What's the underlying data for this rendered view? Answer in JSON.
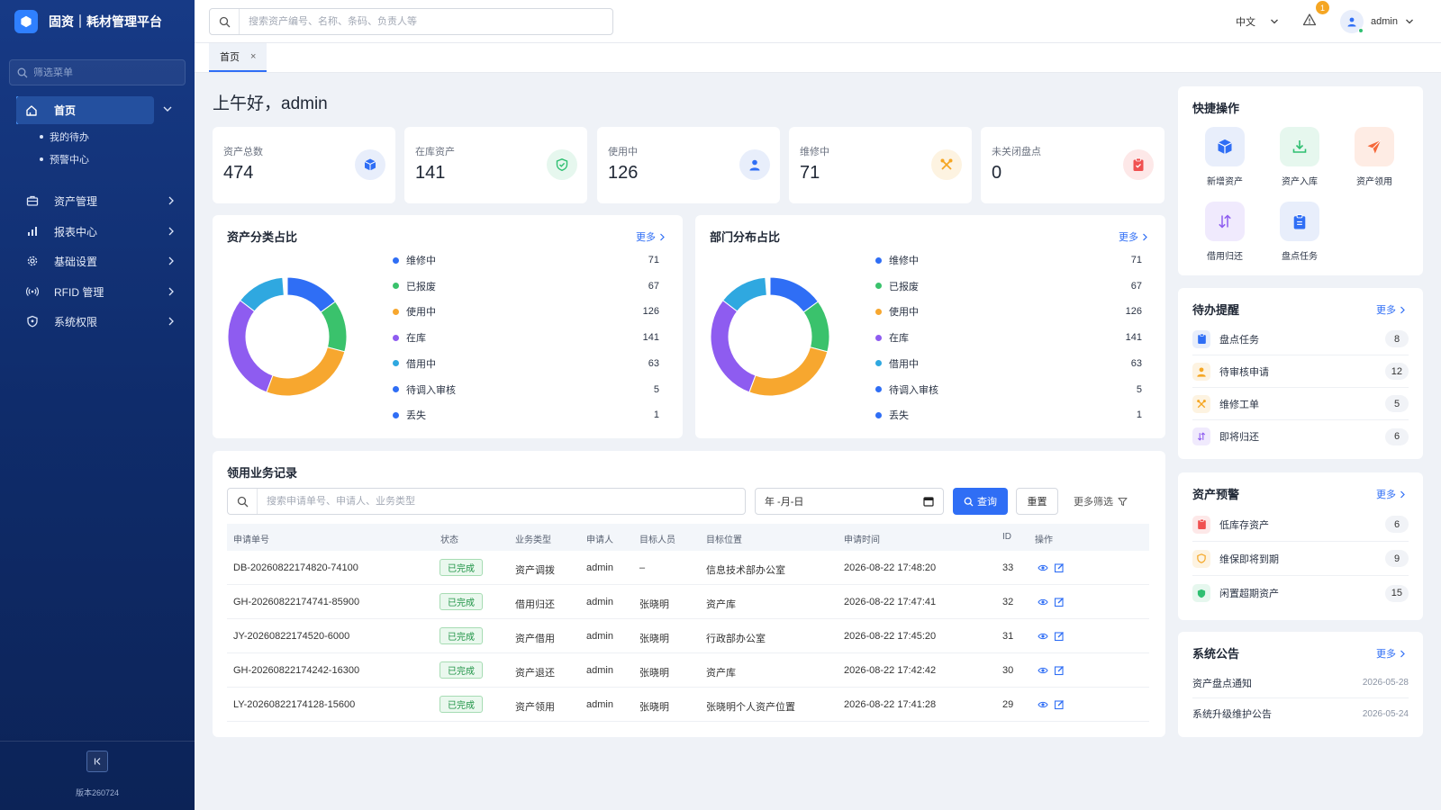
{
  "app": {
    "title": "固资｜耗材管理平台",
    "version": "版本260724"
  },
  "sidebar": {
    "filter_placeholder": "筛选菜单",
    "home": "首页",
    "home_children": [
      "我的待办",
      "预警中心"
    ],
    "items": [
      "资产管理",
      "报表中心",
      "基础设置",
      "RFID 管理",
      "系统权限"
    ]
  },
  "header": {
    "search_placeholder": "搜索资产编号、名称、条码、负责人等",
    "language": "中文",
    "alert_count": "1",
    "username": "admin"
  },
  "tabs": [
    {
      "label": "首页",
      "close": "×"
    }
  ],
  "greeting": "上午好，admin",
  "stats": [
    {
      "label": "资产总数",
      "value": "474",
      "color": "#2f6ef5",
      "icon": "cube-icon"
    },
    {
      "label": "在库资产",
      "value": "141",
      "color": "#2fbf71",
      "icon": "shield-check-icon"
    },
    {
      "label": "使用中",
      "value": "126",
      "color": "#2f6ef5",
      "icon": "user-icon"
    },
    {
      "label": "维修中",
      "value": "71",
      "color": "#f5a623",
      "icon": "tools-icon"
    },
    {
      "label": "未关闭盘点",
      "value": "0",
      "color": "#f05050",
      "icon": "clipboard-icon"
    }
  ],
  "category_panel": {
    "title": "资产分类占比",
    "more": "更多",
    "chart_data": {
      "type": "pie",
      "categories": [
        "维修中",
        "已报废",
        "使用中",
        "在库",
        "借用中",
        "待调入审核",
        "丢失"
      ],
      "values": [
        71,
        67,
        126,
        141,
        63,
        5,
        1
      ],
      "colors": [
        "#2f6ef5",
        "#3ac26c",
        "#f7a72f",
        "#8e5cf0",
        "#2fa8e0",
        "#2f6ef5",
        "#2f6ef5"
      ]
    }
  },
  "department_panel": {
    "title": "部门分布占比",
    "more": "更多",
    "chart_data": {
      "type": "pie",
      "categories": [
        "维修中",
        "已报废",
        "使用中",
        "在库",
        "借用中",
        "待调入审核",
        "丢失"
      ],
      "values": [
        71,
        67,
        126,
        141,
        63,
        5,
        1
      ],
      "colors": [
        "#2f6ef5",
        "#3ac26c",
        "#f7a72f",
        "#8e5cf0",
        "#2fa8e0",
        "#2f6ef5",
        "#2f6ef5"
      ]
    }
  },
  "records": {
    "title": "领用业务记录",
    "search_placeholder": "搜索申请单号、申请人、业务类型",
    "date_placeholder": "年 -月-日",
    "query": "查询",
    "reset": "重置",
    "more_filter": "更多筛选",
    "columns": [
      "申请单号",
      "状态",
      "业务类型",
      "申请人",
      "目标人员",
      "目标位置",
      "申请时间",
      "ID",
      "操作"
    ],
    "rows": [
      [
        "DB-20260822174820-74100",
        "已完成",
        "资产调拨",
        "admin",
        "–",
        "信息技术部办公室",
        "2026-08-22 17:48:20",
        "33"
      ],
      [
        "GH-20260822174741-85900",
        "已完成",
        "借用归还",
        "admin",
        "张晓明",
        "资产库",
        "2026-08-22 17:47:41",
        "32"
      ],
      [
        "JY-20260822174520-6000",
        "已完成",
        "资产借用",
        "admin",
        "张晓明",
        "行政部办公室",
        "2026-08-22 17:45:20",
        "31"
      ],
      [
        "GH-20260822174242-16300",
        "已完成",
        "资产退还",
        "admin",
        "张晓明",
        "资产库",
        "2026-08-22 17:42:42",
        "30"
      ],
      [
        "LY-20260822174128-15600",
        "已完成",
        "资产领用",
        "admin",
        "张晓明",
        "张晓明个人资产位置",
        "2026-08-22 17:41:28",
        "29"
      ]
    ]
  },
  "quick_actions": {
    "title": "快捷操作",
    "items": [
      {
        "label": "新增资产",
        "icon": "cube-icon",
        "color": "#2f6ef5"
      },
      {
        "label": "资产入库",
        "icon": "download-icon",
        "color": "#2fbf71"
      },
      {
        "label": "资产领用",
        "icon": "send-icon",
        "color": "#f5683a"
      },
      {
        "label": "借用归还",
        "icon": "swap-icon",
        "color": "#8e5cf0"
      },
      {
        "label": "盘点任务",
        "icon": "clipboard-icon",
        "color": "#2f6ef5"
      }
    ]
  },
  "todo": {
    "title": "待办提醒",
    "more": "更多",
    "items": [
      {
        "label": "盘点任务",
        "count": "8",
        "icon": "clipboard-icon",
        "color": "#2f6ef5"
      },
      {
        "label": "待审核申请",
        "count": "12",
        "icon": "user-icon",
        "color": "#f5a623"
      },
      {
        "label": "维修工单",
        "count": "5",
        "icon": "tools-icon",
        "color": "#f5a623"
      },
      {
        "label": "即将归还",
        "count": "6",
        "icon": "swap-icon",
        "color": "#8e5cf0"
      }
    ]
  },
  "warnings": {
    "title": "资产预警",
    "more": "更多",
    "items": [
      {
        "label": "低库存资产",
        "count": "6",
        "icon": "clipboard-icon",
        "color": "#f05050"
      },
      {
        "label": "维保即将到期",
        "count": "9",
        "icon": "shield-icon",
        "color": "#f5a623"
      },
      {
        "label": "闲置超期资产",
        "count": "15",
        "icon": "shield-icon",
        "color": "#2fbf71"
      }
    ]
  },
  "notices": {
    "title": "系统公告",
    "more": "更多",
    "items": [
      {
        "title": "资产盘点通知",
        "date": "2026-05-28"
      },
      {
        "title": "系统升级维护公告",
        "date": "2026-05-24"
      }
    ]
  }
}
